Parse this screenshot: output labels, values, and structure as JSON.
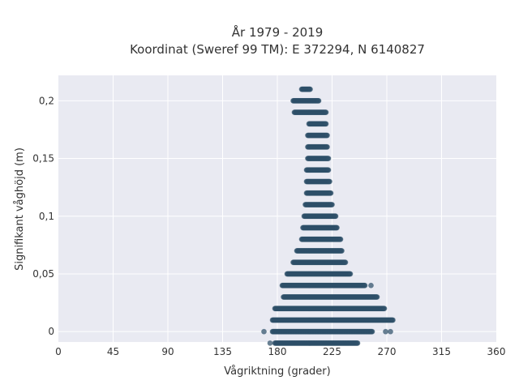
{
  "chart_data": {
    "type": "scatter",
    "title": [
      "År 1979 - 2019",
      "Koordinat (Sweref 99 TM): E 372294, N 6140827"
    ],
    "xlabel": "Vågriktning (grader)",
    "ylabel": "Signifikant våghöjd (m)",
    "xlim": [
      0,
      360
    ],
    "ylim": [
      -0.009,
      0.222
    ],
    "x_ticks": [
      0,
      45,
      90,
      135,
      180,
      225,
      270,
      315,
      360
    ],
    "x_tick_labels": [
      "0",
      "45",
      "90",
      "135",
      "180",
      "225",
      "270",
      "315",
      "360"
    ],
    "y_ticks": [
      0,
      0.05,
      0.1,
      0.15,
      0.2
    ],
    "y_tick_labels": [
      "0",
      "0,05",
      "0,1",
      "0,15",
      "0,2"
    ],
    "grid": true,
    "colors": {
      "points": "#2f5169",
      "plot_background": "#e9eaf2",
      "grid": "#ffffff"
    },
    "rows": [
      {
        "y": 0.21,
        "x_min": 200,
        "x_max": 207,
        "outliers": []
      },
      {
        "y": 0.2,
        "x_min": 193,
        "x_max": 214,
        "outliers": []
      },
      {
        "y": 0.19,
        "x_min": 194,
        "x_max": 220,
        "outliers": []
      },
      {
        "y": 0.18,
        "x_min": 206,
        "x_max": 220,
        "outliers": []
      },
      {
        "y": 0.17,
        "x_min": 205,
        "x_max": 221,
        "outliers": []
      },
      {
        "y": 0.16,
        "x_min": 205,
        "x_max": 221,
        "outliers": []
      },
      {
        "y": 0.15,
        "x_min": 205,
        "x_max": 222,
        "outliers": []
      },
      {
        "y": 0.14,
        "x_min": 204,
        "x_max": 222,
        "outliers": []
      },
      {
        "y": 0.13,
        "x_min": 204,
        "x_max": 223,
        "outliers": []
      },
      {
        "y": 0.12,
        "x_min": 204,
        "x_max": 224,
        "outliers": []
      },
      {
        "y": 0.11,
        "x_min": 203,
        "x_max": 225,
        "outliers": []
      },
      {
        "y": 0.1,
        "x_min": 202,
        "x_max": 228,
        "outliers": []
      },
      {
        "y": 0.09,
        "x_min": 201,
        "x_max": 229,
        "outliers": []
      },
      {
        "y": 0.08,
        "x_min": 200,
        "x_max": 232,
        "outliers": []
      },
      {
        "y": 0.07,
        "x_min": 196,
        "x_max": 233,
        "outliers": []
      },
      {
        "y": 0.06,
        "x_min": 193,
        "x_max": 236,
        "outliers": []
      },
      {
        "y": 0.05,
        "x_min": 188,
        "x_max": 240,
        "outliers": []
      },
      {
        "y": 0.04,
        "x_min": 184,
        "x_max": 252,
        "outliers": [
          257
        ]
      },
      {
        "y": 0.03,
        "x_min": 185,
        "x_max": 262,
        "outliers": []
      },
      {
        "y": 0.02,
        "x_min": 178,
        "x_max": 268,
        "outliers": []
      },
      {
        "y": 0.01,
        "x_min": 176,
        "x_max": 275,
        "outliers": []
      },
      {
        "y": 0.0,
        "x_min": 176,
        "x_max": 258,
        "outliers": [
          169,
          269,
          273
        ]
      },
      {
        "y": -0.01,
        "x_min": 178,
        "x_max": 246,
        "outliers": [
          174
        ]
      }
    ]
  }
}
